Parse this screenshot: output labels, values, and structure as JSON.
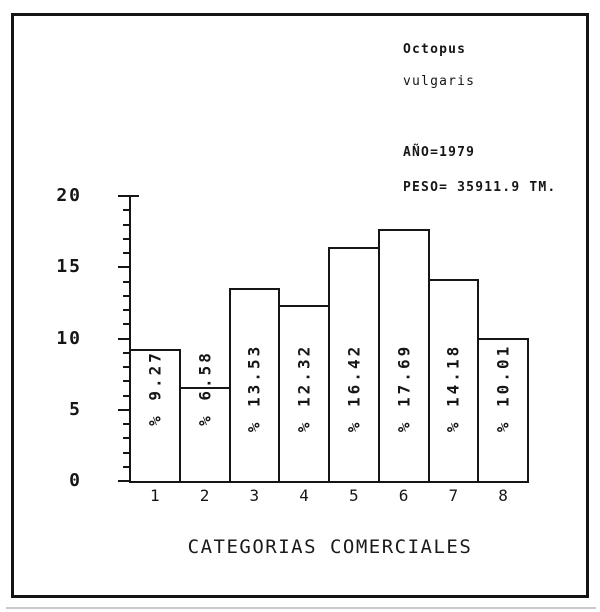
{
  "info_panel": {
    "line1": "Octopus",
    "line2": "vulgaris",
    "line3": "AÑO=1979",
    "line4": "PESO= 35911.9 TM."
  },
  "chart_data": {
    "type": "bar",
    "title": "",
    "xlabel": "CATEGORIAS COMERCIALES",
    "ylabel": "",
    "categories": [
      "1",
      "2",
      "3",
      "4",
      "5",
      "6",
      "7",
      "8"
    ],
    "values": [
      9.27,
      6.58,
      13.53,
      12.32,
      16.42,
      17.69,
      14.18,
      10.01
    ],
    "bar_labels": [
      "% 9.27",
      "% 6.58",
      "% 13.53",
      "% 12.32",
      "% 16.42",
      "% 17.69",
      "% 14.18",
      "% 10.01"
    ],
    "ylim": [
      0,
      20
    ],
    "yticks": [
      0,
      5,
      10,
      15,
      20
    ],
    "minor_tick_step": 1,
    "grid": false,
    "legend": "none",
    "bar_fill": "#ffffff",
    "ink": "#161616"
  }
}
